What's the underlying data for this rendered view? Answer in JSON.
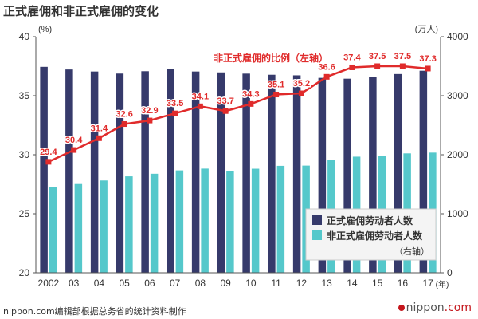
{
  "title": "正式雇佣和非正式雇佣的变化",
  "source_note": "nippon.com编辑部根据总务省的统计资料制作",
  "brand": {
    "name": "nippon",
    "suffix": ".com",
    "accent_color": "#c4161c"
  },
  "colors": {
    "regular": "#363A6B",
    "nonregular": "#55C8CB",
    "line": "#E02B2B",
    "axis": "#555555",
    "grid": "#cccccc",
    "legend_bg": "#f4f4f4"
  },
  "chart_data": {
    "type": "bar",
    "combo": "bar+line",
    "categories": [
      "2002",
      "03",
      "04",
      "05",
      "06",
      "07",
      "08",
      "09",
      "10",
      "11",
      "12",
      "13",
      "14",
      "15",
      "16",
      "17"
    ],
    "x_unit": "(年)",
    "left_axis": {
      "label": "(%)",
      "range": [
        20,
        40
      ],
      "ticks": [
        20,
        25,
        30,
        35,
        40
      ]
    },
    "right_axis": {
      "label": "(万人)",
      "range": [
        0,
        4000
      ],
      "ticks": [
        0,
        1000,
        2000,
        3000,
        4000
      ]
    },
    "grid": false,
    "series": [
      {
        "name": "正式雇佣劳动者人数",
        "type": "bar",
        "axis": "right",
        "values": [
          3489,
          3444,
          3410,
          3375,
          3415,
          3449,
          3410,
          3395,
          3374,
          3355,
          3345,
          3302,
          3288,
          3317,
          3367,
          3423
        ]
      },
      {
        "name": "非正式雇佣劳动者人数",
        "name_note": "（右轴）",
        "type": "bar",
        "axis": "right",
        "values": [
          1451,
          1504,
          1564,
          1634,
          1678,
          1735,
          1765,
          1727,
          1763,
          1812,
          1816,
          1910,
          1967,
          1986,
          2023,
          2036
        ]
      },
      {
        "name": "非正式雇佣的比例",
        "name_note": "（左轴）",
        "type": "line",
        "axis": "left",
        "values": [
          29.4,
          30.4,
          31.4,
          32.6,
          32.9,
          33.5,
          34.1,
          33.7,
          34.3,
          35.1,
          35.2,
          36.6,
          37.4,
          37.5,
          37.5,
          37.3
        ]
      }
    ],
    "line_series_label": "非正式雇佣的比例（左轴）",
    "legend": {
      "placement": "bottom-right"
    }
  }
}
